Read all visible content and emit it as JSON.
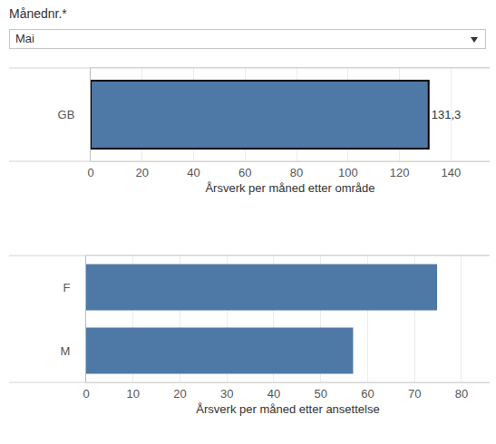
{
  "filter": {
    "label": "Månednr.*",
    "value": "Mai"
  },
  "chart_data": [
    {
      "type": "bar",
      "orientation": "horizontal",
      "categories": [
        "GB"
      ],
      "values": [
        131.3
      ],
      "value_labels": [
        "131,3"
      ],
      "data_labels": true,
      "color": "#4e79a7",
      "xlabel": "Årsverk per måned etter område",
      "xlim": [
        0,
        155
      ],
      "xticks": [
        0,
        20,
        40,
        60,
        80,
        100,
        120,
        140
      ],
      "grid": true
    },
    {
      "type": "bar",
      "orientation": "horizontal",
      "categories": [
        "F",
        "M"
      ],
      "values": [
        74.8,
        56.9
      ],
      "data_labels": false,
      "color": "#4e79a7",
      "xlabel": "Årsverk per måned etter ansettelse",
      "xlim": [
        0,
        86
      ],
      "xticks": [
        0,
        10,
        20,
        30,
        40,
        50,
        60,
        70,
        80
      ],
      "grid": true
    }
  ]
}
